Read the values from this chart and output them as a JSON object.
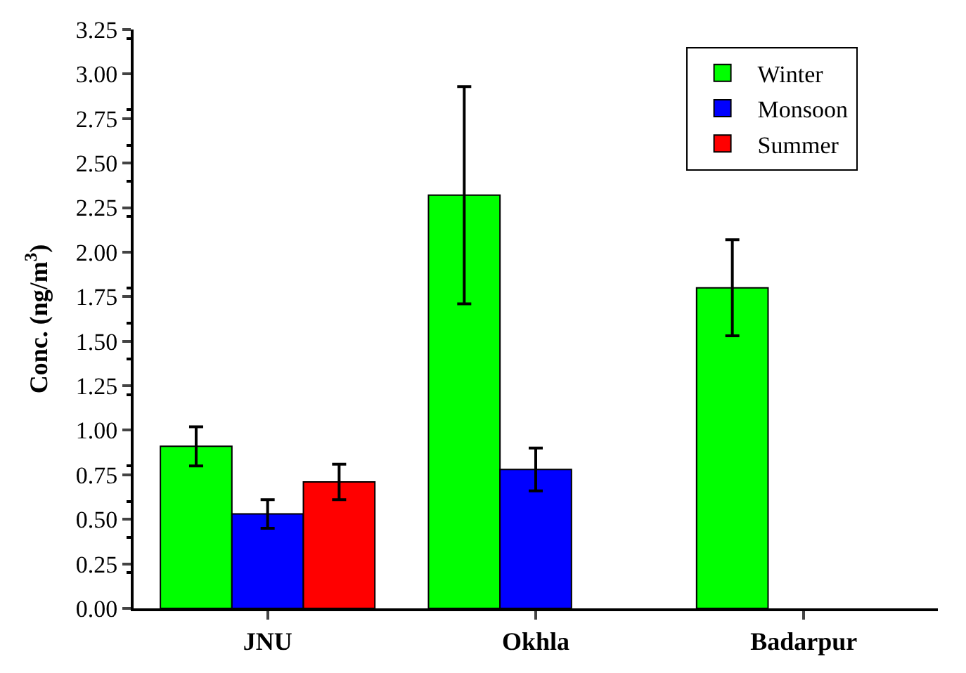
{
  "chart_data": {
    "type": "bar",
    "ylabel": "Conc. (ng/m$^{3}$)",
    "categories": [
      "JNU",
      "Okhla",
      "Badarpur"
    ],
    "series": [
      {
        "name": "Winter",
        "color": "#00ff00",
        "values": [
          0.91,
          2.32,
          1.8
        ],
        "errors": [
          0.11,
          0.61,
          0.27
        ]
      },
      {
        "name": "Monsoon",
        "color": "#0000ff",
        "values": [
          0.53,
          0.78,
          null
        ],
        "errors": [
          0.08,
          0.12,
          null
        ]
      },
      {
        "name": "Summer",
        "color": "#ff0000",
        "values": [
          0.71,
          null,
          null
        ],
        "errors": [
          0.1,
          null,
          null
        ]
      }
    ],
    "ylim": [
      0,
      3.25
    ],
    "yticks": [
      {
        "value": 0,
        "label": "0.00"
      },
      {
        "value": 0.25,
        "label": "0.25"
      },
      {
        "value": 0.5,
        "label": "0.50"
      },
      {
        "value": 0.75,
        "label": "0.75"
      },
      {
        "value": 1,
        "label": "1.00"
      },
      {
        "value": 1.25,
        "label": "1.25"
      },
      {
        "value": 1.5,
        "label": "1.50"
      },
      {
        "value": 1.75,
        "label": "1.75"
      },
      {
        "value": 2,
        "label": "2.00"
      },
      {
        "value": 2.25,
        "label": "2.25"
      },
      {
        "value": 2.5,
        "label": "2.50"
      },
      {
        "value": 2.75,
        "label": "2.75"
      },
      {
        "value": 3,
        "label": "3.00"
      },
      {
        "value": 3.25,
        "label": "3.25"
      }
    ],
    "legend": "top right"
  }
}
